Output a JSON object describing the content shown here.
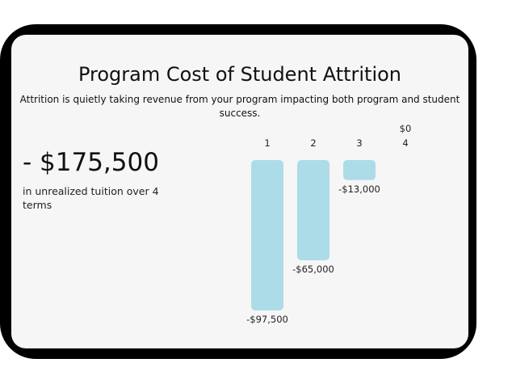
{
  "title": "Program Cost of Student Attrition",
  "subtitle": "Attrition is quietly taking revenue from your program impacting both program and student success.",
  "summary": {
    "value": "- $175,500",
    "description": "in unrealized tuition over 4 terms"
  },
  "colors": {
    "bar": "#acdce8",
    "frame": "#000000",
    "card": "#f6f6f6"
  },
  "chart_data": {
    "type": "bar",
    "categories": [
      "1",
      "2",
      "3",
      "4"
    ],
    "values": [
      -97500,
      -65000,
      -13000,
      0
    ],
    "value_labels": [
      "-$97,500",
      "-$65,000",
      "-$13,000",
      "$0"
    ],
    "title": "Program Cost of Student Attrition",
    "xlabel": "",
    "ylabel": "",
    "ylim": [
      -97500,
      0
    ],
    "grid": false,
    "legend": "none"
  }
}
